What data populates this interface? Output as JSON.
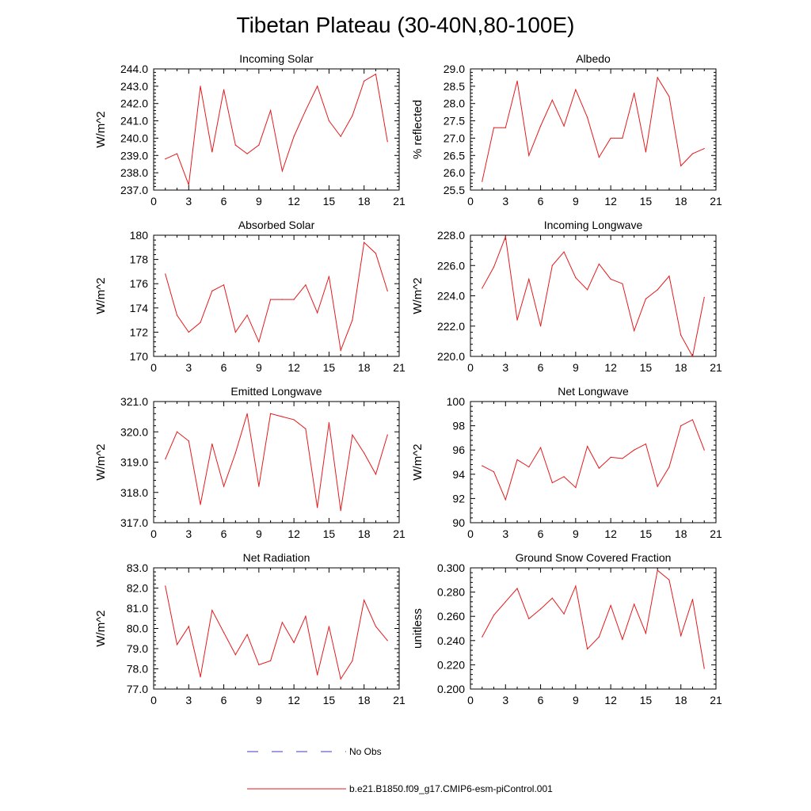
{
  "title": "Tibetan Plateau (30-40N,80-100E)",
  "legend": {
    "entries": [
      {
        "label": "No Obs",
        "color": "#3b3bbf",
        "style": "dashed"
      },
      {
        "label": "b.e21.B1850.f09_g17.CMIP6-esm-piControl.001",
        "color": "#e41a1c",
        "style": "solid"
      }
    ]
  },
  "chart_data": [
    {
      "type": "line",
      "title": "Incoming Solar",
      "ylabel": "W/m^2",
      "xlim": [
        0,
        21
      ],
      "xticks": [
        0,
        3,
        6,
        9,
        12,
        15,
        18,
        21
      ],
      "ylim": [
        237.0,
        244.0
      ],
      "yticks": [
        "237.0",
        "238.0",
        "239.0",
        "240.0",
        "241.0",
        "242.0",
        "243.0",
        "244.0"
      ],
      "x": [
        1,
        2,
        3,
        4,
        5,
        6,
        7,
        8,
        9,
        10,
        11,
        12,
        13,
        14,
        15,
        16,
        17,
        18,
        19,
        20
      ],
      "series": [
        {
          "values": [
            238.8,
            239.1,
            237.3,
            243.0,
            239.2,
            242.8,
            239.6,
            239.1,
            239.6,
            241.6,
            238.1,
            240.1,
            241.6,
            243.0,
            241.0,
            240.1,
            241.3,
            243.3,
            243.7,
            239.8
          ]
        }
      ]
    },
    {
      "type": "line",
      "title": "Albedo",
      "ylabel": "% reflected",
      "xlim": [
        0,
        21
      ],
      "xticks": [
        0,
        3,
        6,
        9,
        12,
        15,
        18,
        21
      ],
      "ylim": [
        25.5,
        29.0
      ],
      "yticks": [
        "25.5",
        "26.0",
        "26.5",
        "27.0",
        "27.5",
        "28.0",
        "28.5",
        "29.0"
      ],
      "x": [
        1,
        2,
        3,
        4,
        5,
        6,
        7,
        8,
        9,
        10,
        11,
        12,
        13,
        14,
        15,
        16,
        17,
        18,
        19,
        20
      ],
      "series": [
        {
          "values": [
            25.75,
            27.3,
            27.3,
            28.65,
            26.5,
            27.35,
            28.1,
            27.35,
            28.4,
            27.6,
            26.45,
            27.0,
            27.0,
            28.3,
            26.6,
            28.75,
            28.2,
            26.2,
            26.55,
            26.7
          ]
        }
      ]
    },
    {
      "type": "line",
      "title": "Absorbed Solar",
      "ylabel": "W/m^2",
      "xlim": [
        0,
        21
      ],
      "xticks": [
        0,
        3,
        6,
        9,
        12,
        15,
        18,
        21
      ],
      "ylim": [
        170,
        180
      ],
      "yticks": [
        "170",
        "172",
        "174",
        "176",
        "178",
        "180"
      ],
      "x": [
        1,
        2,
        3,
        4,
        5,
        6,
        7,
        8,
        9,
        10,
        11,
        12,
        13,
        14,
        15,
        16,
        17,
        18,
        19,
        20
      ],
      "series": [
        {
          "values": [
            176.8,
            173.4,
            172.0,
            172.8,
            175.4,
            175.9,
            172.0,
            173.4,
            171.2,
            174.7,
            174.7,
            174.7,
            175.9,
            173.6,
            176.6,
            170.5,
            173.0,
            179.4,
            178.5,
            175.4
          ]
        }
      ]
    },
    {
      "type": "line",
      "title": "Incoming Longwave",
      "ylabel": "W/m^2",
      "xlim": [
        0,
        21
      ],
      "xticks": [
        0,
        3,
        6,
        9,
        12,
        15,
        18,
        21
      ],
      "ylim": [
        220.0,
        228.0
      ],
      "yticks": [
        "220.0",
        "222.0",
        "224.0",
        "226.0",
        "228.0"
      ],
      "x": [
        1,
        2,
        3,
        4,
        5,
        6,
        7,
        8,
        9,
        10,
        11,
        12,
        13,
        14,
        15,
        16,
        17,
        18,
        19,
        20
      ],
      "series": [
        {
          "values": [
            224.5,
            225.9,
            227.9,
            222.4,
            225.1,
            222.0,
            226.0,
            226.9,
            225.2,
            224.4,
            226.1,
            225.1,
            224.8,
            221.7,
            223.8,
            224.4,
            225.3,
            221.4,
            220.0,
            223.9
          ]
        }
      ]
    },
    {
      "type": "line",
      "title": "Emitted Longwave",
      "ylabel": "W/m^2",
      "xlim": [
        0,
        21
      ],
      "xticks": [
        0,
        3,
        6,
        9,
        12,
        15,
        18,
        21
      ],
      "ylim": [
        317.0,
        321.0
      ],
      "yticks": [
        "317.0",
        "318.0",
        "319.0",
        "320.0",
        "321.0"
      ],
      "x": [
        1,
        2,
        3,
        4,
        5,
        6,
        7,
        8,
        9,
        10,
        11,
        12,
        13,
        14,
        15,
        16,
        17,
        18,
        19,
        20
      ],
      "series": [
        {
          "values": [
            319.1,
            320.0,
            319.7,
            317.6,
            319.6,
            318.2,
            319.3,
            320.6,
            318.2,
            320.6,
            320.5,
            320.4,
            320.1,
            317.5,
            320.3,
            317.4,
            319.9,
            319.3,
            318.6,
            319.9
          ]
        }
      ]
    },
    {
      "type": "line",
      "title": "Net Longwave",
      "ylabel": "W/m^2",
      "xlim": [
        0,
        21
      ],
      "xticks": [
        0,
        3,
        6,
        9,
        12,
        15,
        18,
        21
      ],
      "ylim": [
        90,
        100
      ],
      "yticks": [
        "90",
        "92",
        "94",
        "96",
        "98",
        "100"
      ],
      "x": [
        1,
        2,
        3,
        4,
        5,
        6,
        7,
        8,
        9,
        10,
        11,
        12,
        13,
        14,
        15,
        16,
        17,
        18,
        19,
        20
      ],
      "series": [
        {
          "values": [
            94.7,
            94.2,
            91.9,
            95.2,
            94.6,
            96.2,
            93.3,
            93.8,
            92.9,
            96.3,
            94.5,
            95.4,
            95.3,
            96.0,
            96.5,
            93.0,
            94.6,
            98.0,
            98.5,
            96.0
          ]
        }
      ]
    },
    {
      "type": "line",
      "title": "Net Radiation",
      "ylabel": "W/m^2",
      "xlim": [
        0,
        21
      ],
      "xticks": [
        0,
        3,
        6,
        9,
        12,
        15,
        18,
        21
      ],
      "ylim": [
        77.0,
        83.0
      ],
      "yticks": [
        "77.0",
        "78.0",
        "79.0",
        "80.0",
        "81.0",
        "82.0",
        "83.0"
      ],
      "x": [
        1,
        2,
        3,
        4,
        5,
        6,
        7,
        8,
        9,
        10,
        11,
        12,
        13,
        14,
        15,
        16,
        17,
        18,
        19,
        20
      ],
      "series": [
        {
          "values": [
            82.1,
            79.2,
            80.1,
            77.6,
            80.9,
            79.8,
            78.7,
            79.7,
            78.2,
            78.4,
            80.3,
            79.3,
            80.6,
            77.7,
            80.1,
            77.5,
            78.4,
            81.4,
            80.1,
            79.4
          ]
        }
      ]
    },
    {
      "type": "line",
      "title": "Ground Snow Covered Fraction",
      "ylabel": "unitless",
      "xlim": [
        0,
        21
      ],
      "xticks": [
        0,
        3,
        6,
        9,
        12,
        15,
        18,
        21
      ],
      "ylim": [
        0.2,
        0.3
      ],
      "yticks": [
        "0.200",
        "0.220",
        "0.240",
        "0.260",
        "0.280",
        "0.300"
      ],
      "x": [
        1,
        2,
        3,
        4,
        5,
        6,
        7,
        8,
        9,
        10,
        11,
        12,
        13,
        14,
        15,
        16,
        17,
        18,
        19,
        20
      ],
      "series": [
        {
          "values": [
            0.243,
            0.261,
            0.272,
            0.283,
            0.258,
            0.266,
            0.275,
            0.262,
            0.285,
            0.233,
            0.243,
            0.269,
            0.241,
            0.27,
            0.246,
            0.298,
            0.29,
            0.244,
            0.274,
            0.217
          ]
        }
      ]
    }
  ]
}
